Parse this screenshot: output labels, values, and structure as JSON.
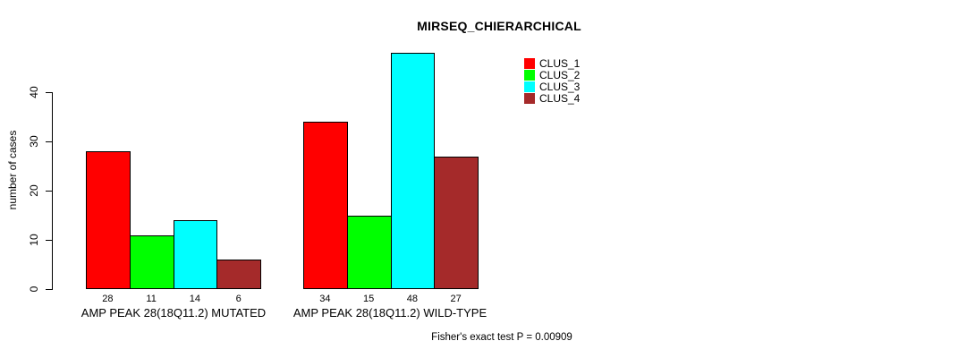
{
  "title": "MIRSEQ_CHIERARCHICAL",
  "y_axis": {
    "label": "number of cases",
    "tick_labels": [
      "0",
      "10",
      "20",
      "30",
      "40"
    ]
  },
  "footer": "Fisher's exact test P = 0.00909",
  "legend": {
    "items": [
      {
        "label": "CLUS_1",
        "color": "#FF0000"
      },
      {
        "label": "CLUS_2",
        "color": "#00FF00"
      },
      {
        "label": "CLUS_3",
        "color": "#00FFFF"
      },
      {
        "label": "CLUS_4",
        "color": "#A52A2A"
      }
    ]
  },
  "chart_data": {
    "type": "bar",
    "title": "MIRSEQ_CHIERARCHICAL",
    "xlabel": "",
    "ylabel": "number of cases",
    "ylim": [
      0,
      48
    ],
    "yticks": [
      0,
      10,
      20,
      30,
      40
    ],
    "grid": false,
    "legend_position": "top-right",
    "bar_value_labels_shown": true,
    "categories": [
      "AMP PEAK 28(18Q11.2) MUTATED",
      "AMP PEAK 28(18Q11.2) WILD-TYPE"
    ],
    "series": [
      {
        "name": "CLUS_1",
        "color": "#FF0000",
        "values": [
          28,
          34
        ]
      },
      {
        "name": "CLUS_2",
        "color": "#00FF00",
        "values": [
          11,
          15
        ]
      },
      {
        "name": "CLUS_3",
        "color": "#00FFFF",
        "values": [
          14,
          48
        ]
      },
      {
        "name": "CLUS_4",
        "color": "#A52A2A",
        "values": [
          6,
          27
        ]
      }
    ],
    "annotation": "Fisher's exact test P = 0.00909"
  }
}
